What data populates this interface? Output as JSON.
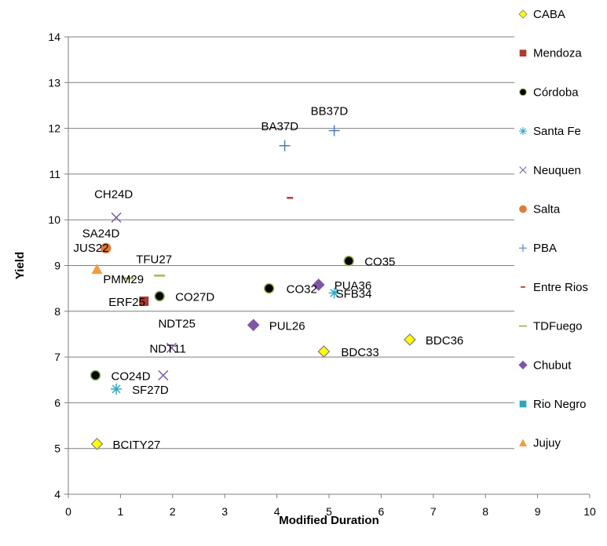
{
  "chart_data": {
    "type": "scatter",
    "title": "",
    "xlabel": "Modified Duration",
    "ylabel": "Yield",
    "xlim": [
      0,
      10
    ],
    "ylim": [
      4,
      14
    ],
    "x_ticks": [
      "0",
      "1",
      "2",
      "3",
      "4",
      "5",
      "6",
      "7",
      "8",
      "9",
      "10"
    ],
    "y_ticks": [
      "4",
      "5",
      "6",
      "7",
      "8",
      "9",
      "10",
      "11",
      "12",
      "13",
      "14"
    ],
    "grid": "horizontal",
    "legend_position": "right",
    "series": [
      {
        "name": "CABA",
        "marker": "diamond",
        "color": "#ffff00",
        "points": [
          {
            "x": 0.55,
            "y": 5.1,
            "label": "BCITY27"
          },
          {
            "x": 4.9,
            "y": 7.12,
            "label": "BDC33"
          },
          {
            "x": 6.55,
            "y": 7.38,
            "label": "BDC36"
          }
        ]
      },
      {
        "name": "Mendoza",
        "marker": "square",
        "color": "#b03a2e",
        "points": [
          {
            "x": 1.45,
            "y": 8.22,
            "label": "ERF25"
          }
        ]
      },
      {
        "name": "Córdoba",
        "marker": "circle",
        "color": "#000000",
        "points": [
          {
            "x": 0.52,
            "y": 6.6,
            "label": "CO24D"
          },
          {
            "x": 1.75,
            "y": 8.33,
            "label": "CO27D"
          },
          {
            "x": 3.85,
            "y": 8.5,
            "label": "CO32"
          },
          {
            "x": 5.38,
            "y": 9.1,
            "label": "CO35"
          }
        ]
      },
      {
        "name": "Santa Fe",
        "marker": "asterisk",
        "color": "#31a9c4",
        "points": [
          {
            "x": 0.92,
            "y": 6.3,
            "label": "SF27D"
          },
          {
            "x": 5.1,
            "y": 8.4,
            "label": "SFB34"
          }
        ]
      },
      {
        "name": "Neuquen",
        "marker": "x",
        "color": "#7b62a8",
        "points": [
          {
            "x": 0.92,
            "y": 10.05,
            "label": "CH24D"
          },
          {
            "x": 1.82,
            "y": 6.6,
            "label": ""
          },
          {
            "x": 1.98,
            "y": 7.2,
            "label": "NDT11"
          }
        ]
      },
      {
        "name": "Salta",
        "marker": "circle",
        "color": "#e07b39",
        "points": [
          {
            "x": 0.72,
            "y": 9.38,
            "label": "SA24D"
          }
        ]
      },
      {
        "name": "PBA",
        "marker": "plus",
        "color": "#4a7ebb",
        "points": [
          {
            "x": 4.15,
            "y": 11.62,
            "label": "BA37D"
          },
          {
            "x": 5.1,
            "y": 11.95,
            "label": "BB37D"
          }
        ]
      },
      {
        "name": "Entre Rios",
        "marker": "dash",
        "color": "#c0392b",
        "points": [
          {
            "x": 4.25,
            "y": 10.48,
            "label": ""
          }
        ]
      },
      {
        "name": "TDFuego",
        "marker": "line",
        "color": "#9bbb59",
        "points": [
          {
            "x": 1.15,
            "y": 8.72,
            "label": "PMM29"
          },
          {
            "x": 1.75,
            "y": 8.78,
            "label": "TFU27"
          }
        ]
      },
      {
        "name": "Chubut",
        "marker": "diamond",
        "color": "#7e56a6",
        "points": [
          {
            "x": 3.55,
            "y": 7.7,
            "label": "PUL26"
          },
          {
            "x": 4.8,
            "y": 8.58,
            "label": "PUA36"
          }
        ]
      },
      {
        "name": "Rio Negro",
        "marker": "square",
        "color": "#2aa8b8",
        "points": []
      },
      {
        "name": "Jujuy",
        "marker": "triangle",
        "color": "#f39c3c",
        "points": [
          {
            "x": 0.55,
            "y": 8.92,
            "label": "JUS22"
          }
        ]
      }
    ],
    "free_labels": [
      {
        "text": "NDT25",
        "x": 1.95,
        "y": 7.75
      }
    ]
  }
}
